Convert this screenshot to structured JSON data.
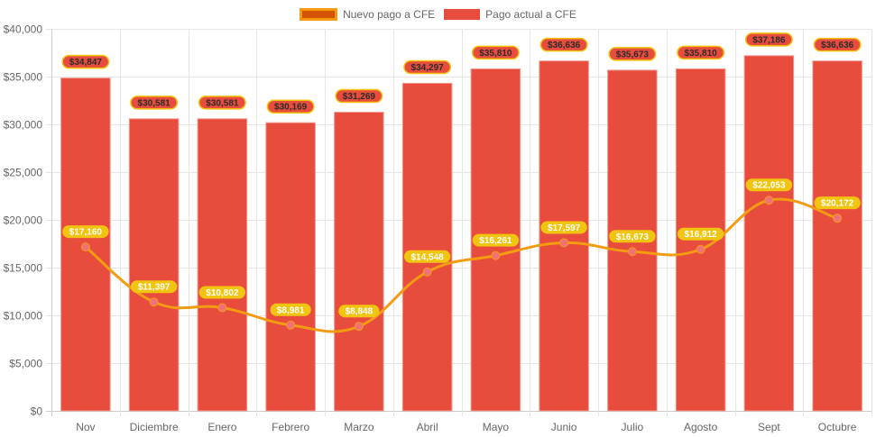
{
  "chart_data": {
    "type": "bar",
    "title": "",
    "xlabel": "",
    "ylabel": "",
    "ylim": [
      0,
      40000
    ],
    "ytick_step": 5000,
    "ytick_format": "currency-dollar",
    "grid": true,
    "legend_position": "top",
    "categories": [
      "Nov",
      "Diciembre",
      "Enero",
      "Febrero",
      "Marzo",
      "Abril",
      "Mayo",
      "Junio",
      "Julio",
      "Agosto",
      "Sept",
      "Octubre"
    ],
    "series": [
      {
        "name": "Nuevo pago a CFE",
        "type": "line",
        "smooth": true,
        "color": "#f39c12",
        "fill_color": "#d35400",
        "point_color": "#f1707a",
        "label_bg": "#f1c40f",
        "values": [
          17160,
          11397,
          10802,
          8981,
          8848,
          14548,
          16261,
          17597,
          16673,
          16912,
          22053,
          20172
        ]
      },
      {
        "name": "Pago actual a CFE",
        "type": "bar",
        "color": "#e74c3c",
        "label_bg": "#e74c3c",
        "label_border": "#f1c40f",
        "values": [
          34847,
          30581,
          30581,
          30169,
          31269,
          34297,
          35810,
          36636,
          35673,
          35810,
          37186,
          36636
        ]
      }
    ],
    "ytick_labels": [
      "$0",
      "$5,000",
      "$10,000",
      "$15,000",
      "$20,000",
      "$25,000",
      "$30,000",
      "$35,000",
      "$40,000"
    ]
  },
  "legend": {
    "items": [
      {
        "label": "Nuevo pago a CFE"
      },
      {
        "label": "Pago actual a CFE"
      }
    ]
  }
}
